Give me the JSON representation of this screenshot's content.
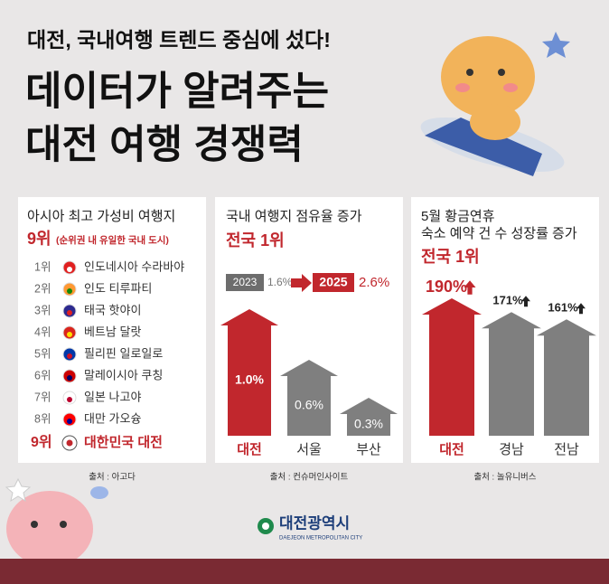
{
  "header": {
    "subtitle": "대전, 국내여행 트렌드 중심에 섰다!",
    "title_lines": [
      "데이터가 알려주는",
      "대전 여행 경쟁력"
    ]
  },
  "ranking": {
    "title": "아시아 최고 가성비 여행지",
    "rank": "9위",
    "rank_note": "(순위권 내 유일한 국내 도시)",
    "items": [
      {
        "rank": "1위",
        "name": "인도네시아 수라바야"
      },
      {
        "rank": "2위",
        "name": "인도 티루파티"
      },
      {
        "rank": "3위",
        "name": "태국 핫야이"
      },
      {
        "rank": "4위",
        "name": "베트남 달랏"
      },
      {
        "rank": "5위",
        "name": "필리핀 일로일로"
      },
      {
        "rank": "6위",
        "name": "말레이시아 쿠칭"
      },
      {
        "rank": "7위",
        "name": "일본 나고야"
      },
      {
        "rank": "8위",
        "name": "대만 가오슝"
      }
    ],
    "highlight": {
      "rank": "9위",
      "name": "대한민국 대전"
    },
    "source": "출처 : 아고다"
  },
  "chart_data": [
    {
      "type": "bar",
      "title_lines": [
        "국내 여행지 점유율 증가"
      ],
      "headline": "전국 1위",
      "comparison": {
        "from_year": "2023",
        "from_value": "1.6%",
        "to_year": "2025",
        "to_value": "2.6%"
      },
      "categories": [
        "대전",
        "서울",
        "부산"
      ],
      "values": [
        1.0,
        0.6,
        0.3
      ],
      "value_labels": [
        "1.0%",
        "0.6%",
        "0.3%"
      ],
      "colors": [
        "#c1272d",
        "#7f7f7f",
        "#7f7f7f"
      ],
      "source": "출처 : 컨슈머인사이트"
    },
    {
      "type": "bar",
      "title_lines": [
        "5월 황금연휴",
        "숙소 예약 건 수 성장률 증가"
      ],
      "headline": "전국 1위",
      "categories": [
        "대전",
        "경남",
        "전남"
      ],
      "values": [
        190,
        171,
        161
      ],
      "value_labels": [
        "190%",
        "171%",
        "161%"
      ],
      "colors": [
        "#c1272d",
        "#7f7f7f",
        "#7f7f7f"
      ],
      "source": "출처 : 놀유니버스"
    }
  ],
  "logo": {
    "name": "대전광역시",
    "english": "DAEJEON METROPOLITAN CITY"
  }
}
